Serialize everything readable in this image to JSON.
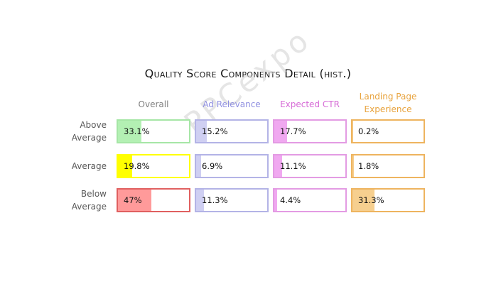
{
  "chart_data": {
    "type": "table",
    "title": "Quality Score Components Detail (hist.)",
    "columns": [
      {
        "name": "Overall",
        "color": "#7f7f7f"
      },
      {
        "name": "Ad Relevance",
        "color": "#8f8fe0"
      },
      {
        "name": "Expected CTR",
        "color": "#d66ad6"
      },
      {
        "name": "Landing Page Experience",
        "color": "#e8a33d"
      }
    ],
    "rows": [
      "Above Average",
      "Average",
      "Below Average"
    ],
    "values": [
      [
        33.1,
        15.2,
        17.7,
        0.2
      ],
      [
        19.8,
        6.9,
        11.1,
        1.8
      ],
      [
        47.0,
        11.3,
        4.4,
        31.3
      ]
    ],
    "labels": [
      [
        "33.1%",
        "15.2%",
        "17.7%",
        "0.2%"
      ],
      [
        "19.8%",
        "6.9%",
        "11.1%",
        "1.8%"
      ],
      [
        "47%",
        "11.3%",
        "4.4%",
        "31.3%"
      ]
    ],
    "cell_colors": [
      [
        {
          "border": "#a6e6a6",
          "fill": "#b3f0b3"
        },
        {
          "border": "#b3b3e6",
          "fill": "#cfcff2"
        },
        {
          "border": "#e39be3",
          "fill": "#f0a8f0"
        },
        {
          "border": "#eeb45f",
          "fill": "#f6cf8f"
        }
      ],
      [
        {
          "border": "#ffff00",
          "fill": "#ffff00"
        },
        {
          "border": "#b3b3e6",
          "fill": "#cfcff2"
        },
        {
          "border": "#e39be3",
          "fill": "#f0a8f0"
        },
        {
          "border": "#eeb45f",
          "fill": "#f6cf8f"
        }
      ],
      [
        {
          "border": "#e06060",
          "fill": "#ff9a9a"
        },
        {
          "border": "#b3b3e6",
          "fill": "#cfcff2"
        },
        {
          "border": "#e39be3",
          "fill": "#f0a8f0"
        },
        {
          "border": "#eeb45f",
          "fill": "#f6cf8f"
        }
      ]
    ],
    "fill_scale_max": 100
  },
  "column_headers": [
    "Overall",
    "Ad Relevance",
    "Expected CTR",
    "Landing Page\nExperience"
  ],
  "row_headers": [
    "Above\nAverage",
    "Average",
    "Below\nAverage"
  ],
  "watermark": "PPCexpo"
}
